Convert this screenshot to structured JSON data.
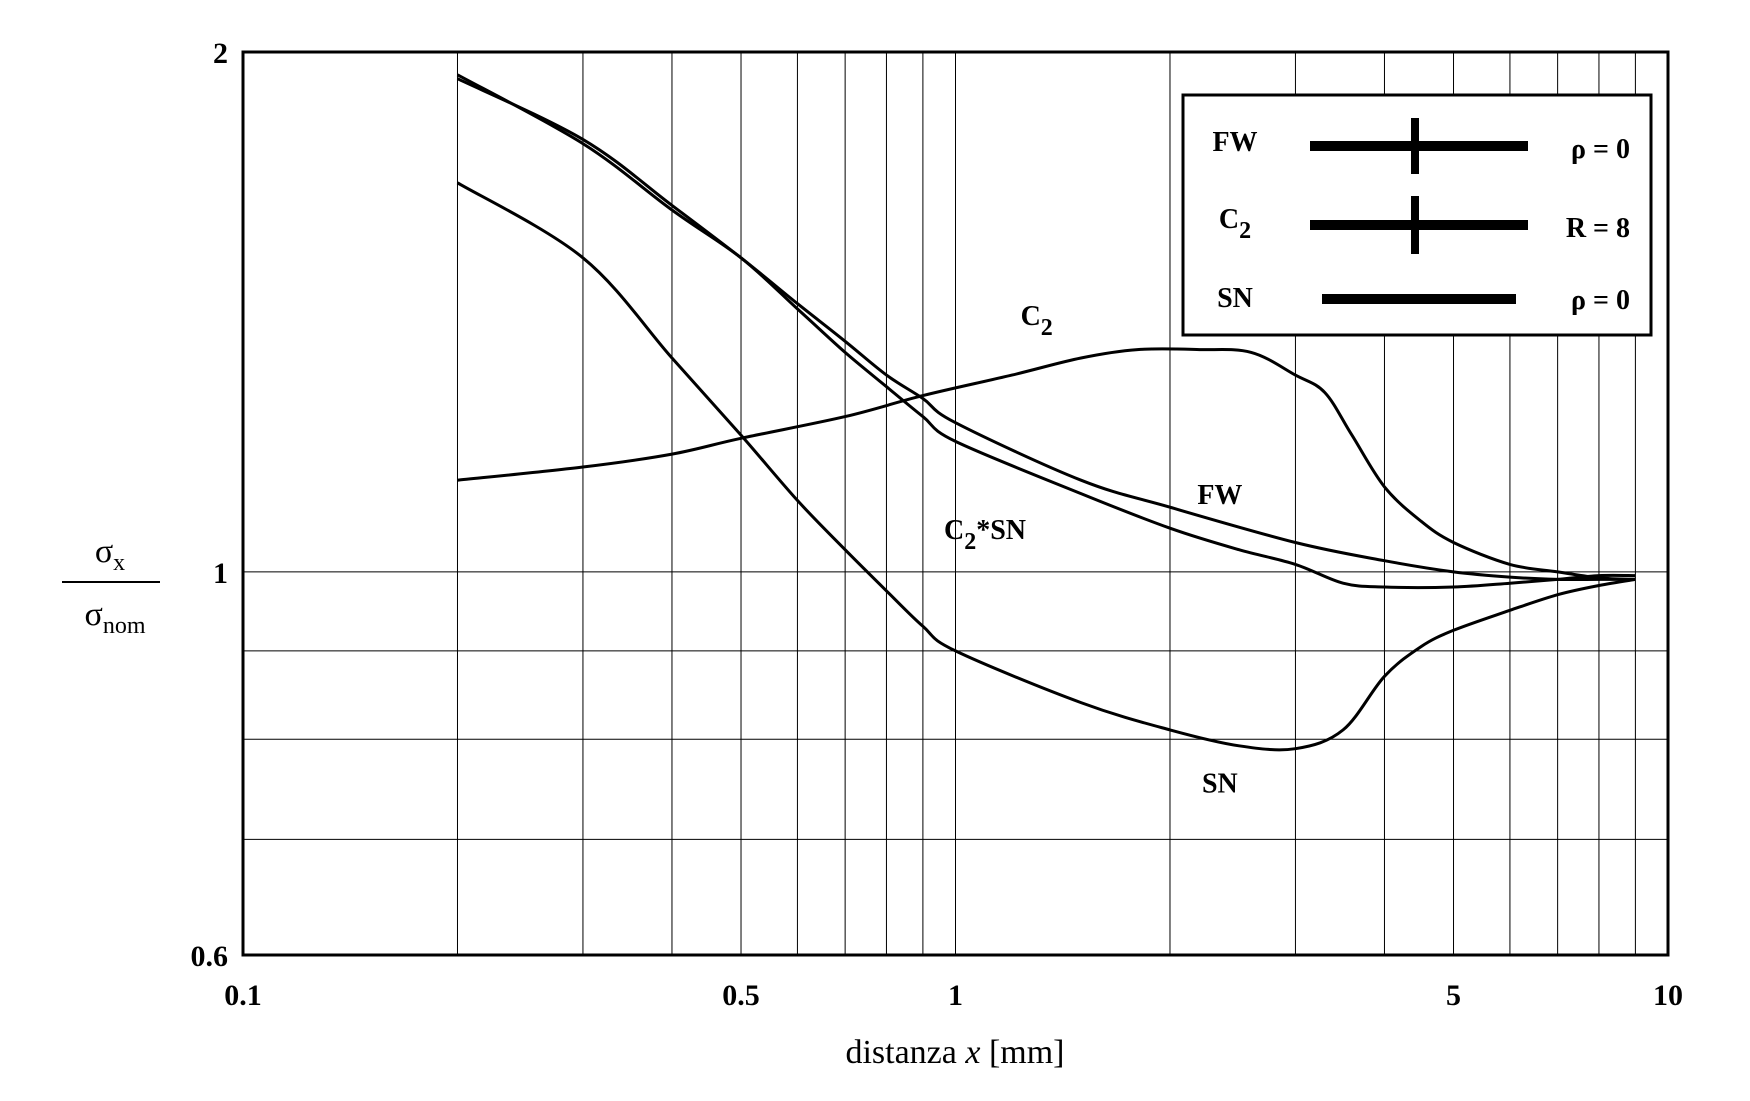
{
  "chart_data": {
    "type": "line",
    "xlabel_main": "distanza ",
    "xlabel_var": "x",
    "xlabel_unit": "  [mm]",
    "ylabel_numerator_symbol": "σ",
    "ylabel_numerator_sub": "x",
    "ylabel_denominator_symbol": "σ",
    "ylabel_denominator_sub": "nom",
    "x_scale": "log",
    "y_scale": "log",
    "xlim": [
      0.1,
      10
    ],
    "ylim": [
      0.6,
      2
    ],
    "x_ticks": [
      {
        "value": 0.1,
        "label": "0.1"
      },
      {
        "value": 0.5,
        "label": "0.5"
      },
      {
        "value": 1,
        "label": "1"
      },
      {
        "value": 5,
        "label": "5"
      },
      {
        "value": 10,
        "label": "10"
      }
    ],
    "y_ticks": [
      {
        "value": 0.6,
        "label": "0.6"
      },
      {
        "value": 1,
        "label": "1"
      },
      {
        "value": 2,
        "label": "2"
      }
    ],
    "x_grid": [
      0.2,
      0.3,
      0.4,
      0.5,
      0.6,
      0.7,
      0.8,
      0.9,
      1,
      2,
      3,
      4,
      5,
      6,
      7,
      8,
      9
    ],
    "y_grid": [
      0.7,
      0.8,
      0.9,
      1
    ],
    "grid": true,
    "legend_position": "top-right",
    "legend": [
      {
        "name": "FW",
        "param": "ρ = 0",
        "marker": "cross"
      },
      {
        "name_main": "C",
        "name_sub": "2",
        "param": "R = 8",
        "marker": "cross"
      },
      {
        "name": "SN",
        "param": "ρ = 0",
        "marker": "none"
      }
    ],
    "series": [
      {
        "name": "FW",
        "label_x": 2.35,
        "label_y": 1.095,
        "points": [
          [
            0.2,
            1.93
          ],
          [
            0.3,
            1.78
          ],
          [
            0.4,
            1.63
          ],
          [
            0.5,
            1.52
          ],
          [
            0.6,
            1.43
          ],
          [
            0.7,
            1.36
          ],
          [
            0.8,
            1.3
          ],
          [
            0.9,
            1.26
          ],
          [
            1,
            1.22
          ],
          [
            1.5,
            1.13
          ],
          [
            2,
            1.09
          ],
          [
            3,
            1.04
          ],
          [
            4,
            1.015
          ],
          [
            5,
            1.0
          ],
          [
            6,
            0.993
          ],
          [
            7,
            0.99
          ],
          [
            8,
            0.99
          ],
          [
            9,
            0.99
          ]
        ]
      },
      {
        "name_main": "C",
        "name_sub": "2",
        "name_suffix": "*SN",
        "label_x": 1.1,
        "label_y": 1.045,
        "points": [
          [
            0.2,
            1.94
          ],
          [
            0.3,
            1.77
          ],
          [
            0.4,
            1.62
          ],
          [
            0.5,
            1.52
          ],
          [
            0.6,
            1.42
          ],
          [
            0.7,
            1.34
          ],
          [
            0.8,
            1.28
          ],
          [
            0.9,
            1.23
          ],
          [
            1,
            1.19
          ],
          [
            1.5,
            1.11
          ],
          [
            2,
            1.06
          ],
          [
            2.5,
            1.03
          ],
          [
            3,
            1.01
          ],
          [
            3.5,
            0.985
          ],
          [
            4,
            0.98
          ],
          [
            5,
            0.98
          ],
          [
            6,
            0.985
          ],
          [
            7,
            0.99
          ],
          [
            8,
            0.995
          ],
          [
            9,
            0.995
          ]
        ]
      },
      {
        "name_main": "C",
        "name_sub": "2",
        "label_x": 1.3,
        "label_y": 1.39,
        "points": [
          [
            0.2,
            1.13
          ],
          [
            0.3,
            1.15
          ],
          [
            0.4,
            1.17
          ],
          [
            0.5,
            1.195
          ],
          [
            0.7,
            1.23
          ],
          [
            0.9,
            1.265
          ],
          [
            1.2,
            1.3
          ],
          [
            1.5,
            1.33
          ],
          [
            1.8,
            1.345
          ],
          [
            2.2,
            1.345
          ],
          [
            2.6,
            1.34
          ],
          [
            3,
            1.3
          ],
          [
            3.3,
            1.27
          ],
          [
            3.6,
            1.2
          ],
          [
            4,
            1.12
          ],
          [
            4.5,
            1.07
          ],
          [
            5,
            1.04
          ],
          [
            6,
            1.01
          ],
          [
            7,
            1.0
          ],
          [
            8,
            0.992
          ],
          [
            9,
            0.99
          ]
        ]
      },
      {
        "name": "SN",
        "label_x": 2.35,
        "label_y": 0.745,
        "points": [
          [
            0.2,
            1.68
          ],
          [
            0.3,
            1.52
          ],
          [
            0.4,
            1.33
          ],
          [
            0.5,
            1.2
          ],
          [
            0.6,
            1.1
          ],
          [
            0.7,
            1.03
          ],
          [
            0.8,
            0.975
          ],
          [
            0.9,
            0.93
          ],
          [
            1,
            0.9
          ],
          [
            1.5,
            0.84
          ],
          [
            2,
            0.81
          ],
          [
            2.5,
            0.793
          ],
          [
            3,
            0.79
          ],
          [
            3.5,
            0.81
          ],
          [
            4,
            0.87
          ],
          [
            4.5,
            0.905
          ],
          [
            5,
            0.925
          ],
          [
            6,
            0.95
          ],
          [
            7,
            0.97
          ],
          [
            8,
            0.982
          ],
          [
            9,
            0.99
          ]
        ]
      }
    ]
  }
}
